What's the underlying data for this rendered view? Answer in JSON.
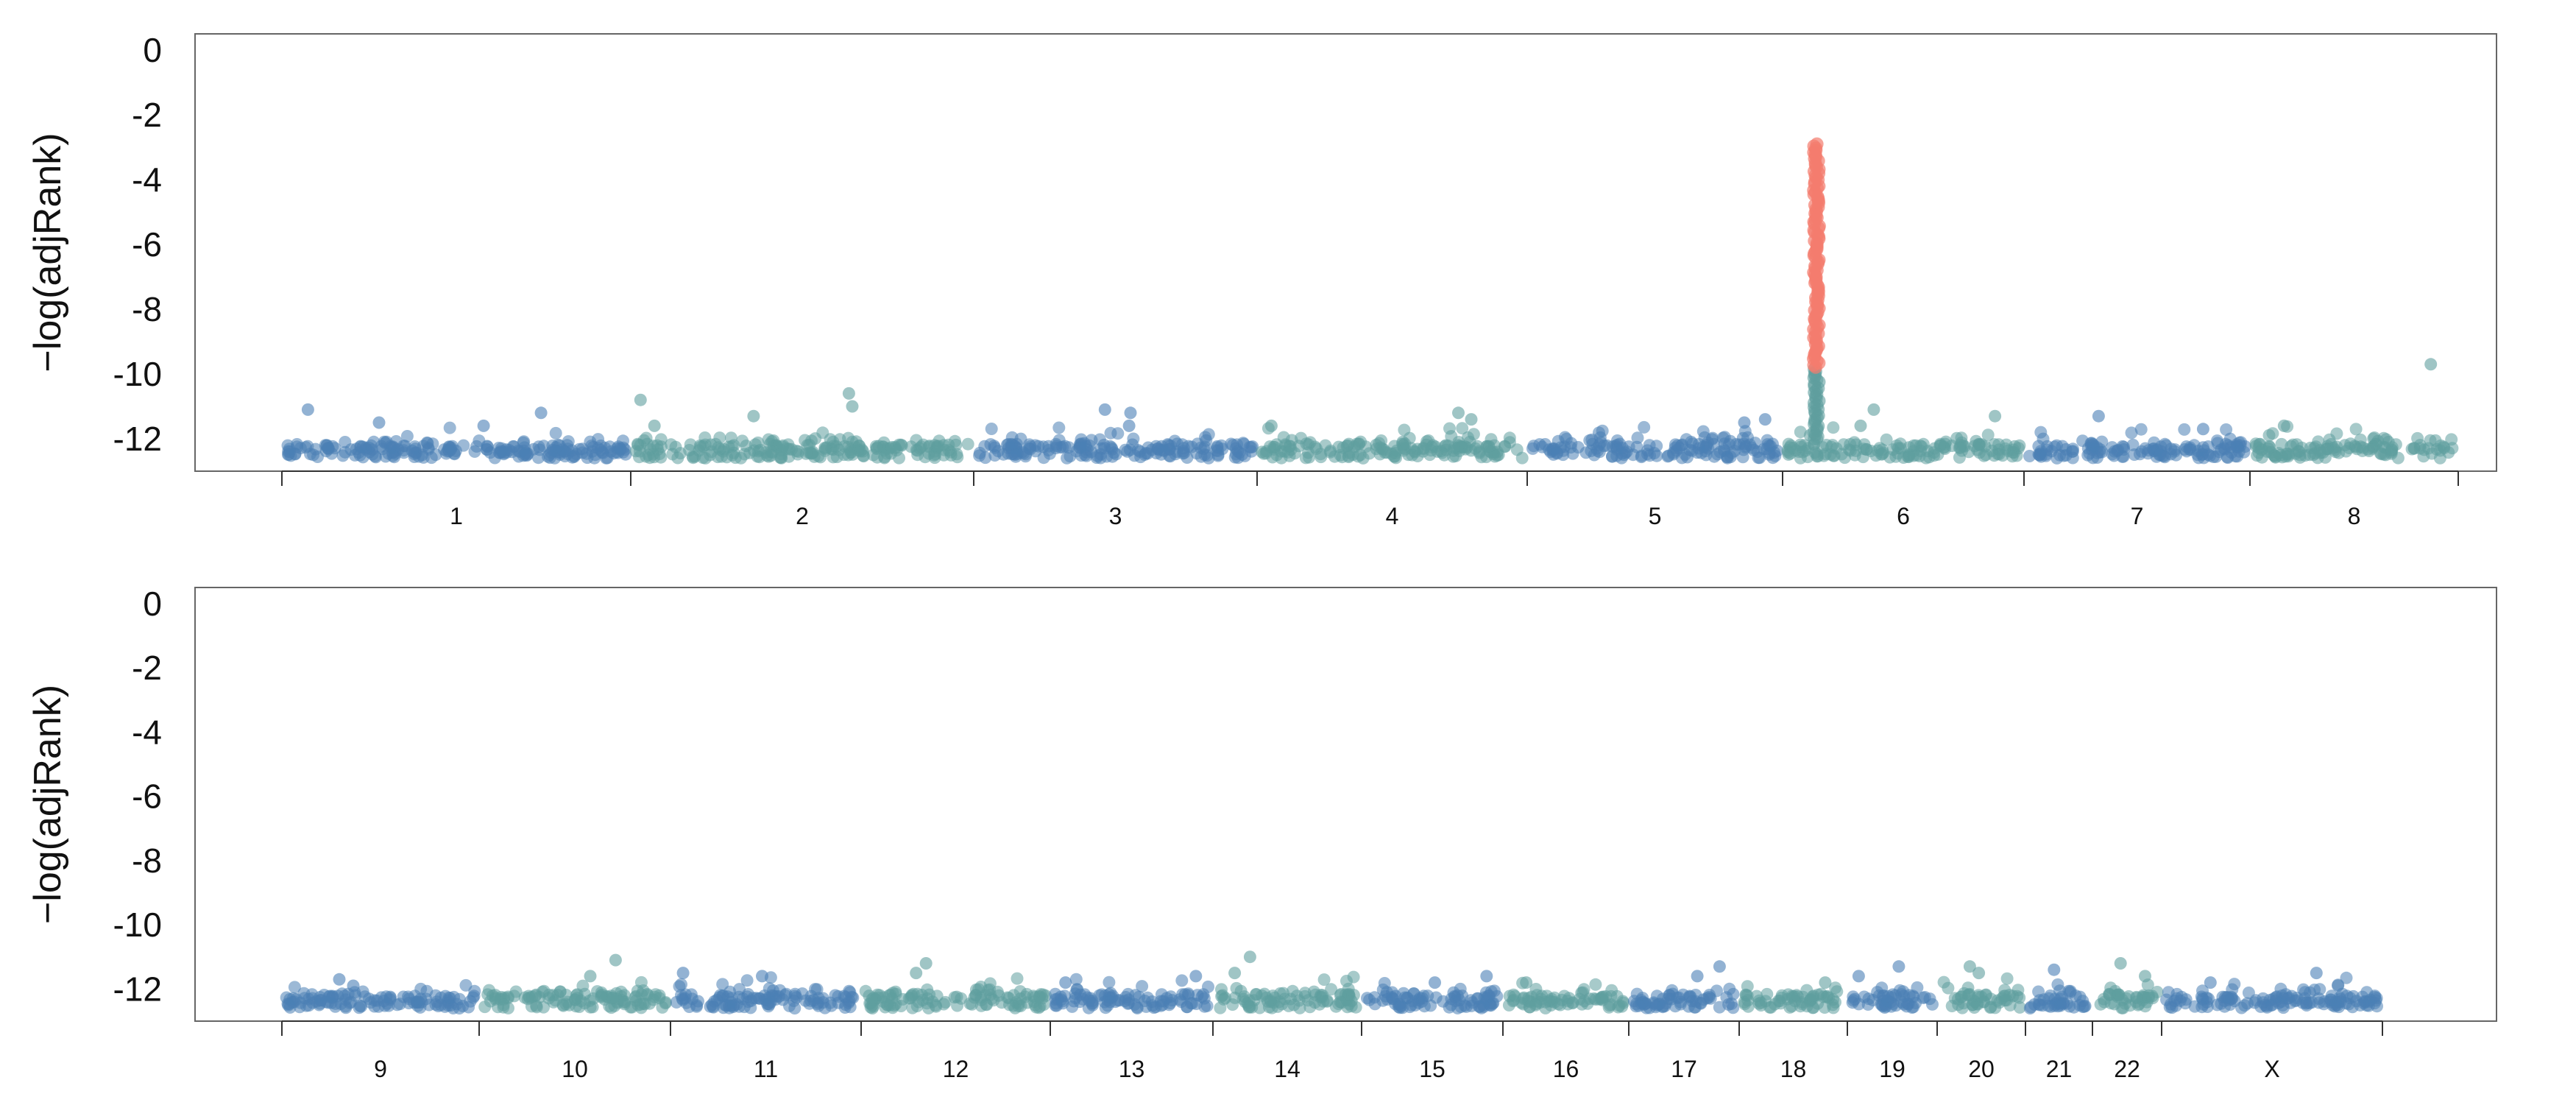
{
  "chart_data": [
    {
      "type": "scatter",
      "title": "",
      "xlabel": "",
      "ylabel": "−log(adjRank)",
      "ylim": [
        -13,
        0.5
      ],
      "y_ticks": [
        0,
        -2,
        -4,
        -6,
        -8,
        -10,
        -12
      ],
      "y_tick_labels": [
        "0",
        "-2",
        "-4",
        "-6",
        "-8",
        "-10",
        "-12"
      ],
      "grid": false,
      "legend": "none",
      "colors": {
        "blue": "#4a7fb5",
        "teal": "#5f9e9e",
        "highlight": "#f47c6e"
      },
      "chromosomes": [
        {
          "label": "1",
          "color": "blue",
          "baseline": -12.35,
          "outliers": [
            -11.2,
            -11.1,
            -11.5,
            -11.6
          ]
        },
        {
          "label": "2",
          "color": "teal",
          "baseline": -12.3,
          "outliers": [
            -10.6,
            -10.8,
            -11.0,
            -11.3,
            -11.6
          ]
        },
        {
          "label": "3",
          "color": "blue",
          "baseline": -12.3,
          "outliers": [
            -11.1,
            -11.2,
            -11.6
          ]
        },
        {
          "label": "4",
          "color": "teal",
          "baseline": -12.3,
          "outliers": [
            -11.2,
            -11.4,
            -11.6
          ]
        },
        {
          "label": "5",
          "color": "blue",
          "baseline": -12.3,
          "outliers": [
            -11.4,
            -11.5
          ]
        },
        {
          "label": "6",
          "color": "teal",
          "baseline": -12.3,
          "outliers": [
            -11.1,
            -11.3,
            -11.6
          ],
          "peak": {
            "min": -12.0,
            "max": -2.9,
            "highlight_above": -9.8
          }
        },
        {
          "label": "7",
          "color": "blue",
          "baseline": -12.35,
          "outliers": [
            -11.3,
            -11.7
          ]
        },
        {
          "label": "8",
          "color": "teal",
          "baseline": -12.3,
          "outliers": [
            -9.7,
            -11.6
          ]
        }
      ]
    },
    {
      "type": "scatter",
      "title": "",
      "xlabel": "",
      "ylabel": "−log(adjRank)",
      "ylim": [
        -13,
        0.5
      ],
      "y_ticks": [
        0,
        -2,
        -4,
        -6,
        -8,
        -10,
        -12
      ],
      "y_tick_labels": [
        "0",
        "-2",
        "-4",
        "-6",
        "-8",
        "-10",
        "-12"
      ],
      "grid": false,
      "legend": "none",
      "colors": {
        "blue": "#4a7fb5",
        "teal": "#5f9e9e",
        "highlight": "#f47c6e"
      },
      "chromosomes": [
        {
          "label": "9",
          "color": "blue",
          "baseline": -12.35,
          "outliers": [
            -11.7,
            -11.9
          ]
        },
        {
          "label": "10",
          "color": "teal",
          "baseline": -12.3,
          "outliers": [
            -11.1,
            -11.6
          ]
        },
        {
          "label": "11",
          "color": "blue",
          "baseline": -12.3,
          "outliers": [
            -11.5,
            -11.6
          ]
        },
        {
          "label": "12",
          "color": "teal",
          "baseline": -12.3,
          "outliers": [
            -11.2,
            -11.5
          ]
        },
        {
          "label": "13",
          "color": "blue",
          "baseline": -12.3,
          "outliers": [
            -11.6,
            -11.8
          ]
        },
        {
          "label": "14",
          "color": "teal",
          "baseline": -12.3,
          "outliers": [
            -11.0,
            -11.5
          ]
        },
        {
          "label": "15",
          "color": "blue",
          "baseline": -12.35,
          "outliers": [
            -11.6,
            -11.8
          ]
        },
        {
          "label": "16",
          "color": "teal",
          "baseline": -12.35,
          "outliers": [
            -11.8
          ]
        },
        {
          "label": "17",
          "color": "blue",
          "baseline": -12.3,
          "outliers": [
            -11.3,
            -11.6
          ]
        },
        {
          "label": "18",
          "color": "teal",
          "baseline": -12.3,
          "outliers": [
            -11.8
          ]
        },
        {
          "label": "19",
          "color": "blue",
          "baseline": -12.3,
          "outliers": [
            -11.3,
            -11.6
          ]
        },
        {
          "label": "20",
          "color": "teal",
          "baseline": -12.3,
          "outliers": [
            -11.3,
            -11.5
          ]
        },
        {
          "label": "21",
          "color": "blue",
          "baseline": -12.35,
          "outliers": [
            -11.4
          ]
        },
        {
          "label": "22",
          "color": "teal",
          "baseline": -12.3,
          "outliers": [
            -11.2,
            -11.6
          ]
        },
        {
          "label": "X",
          "color": "blue",
          "baseline": -12.35,
          "outliers": [
            -11.5,
            -11.8
          ]
        }
      ]
    }
  ]
}
